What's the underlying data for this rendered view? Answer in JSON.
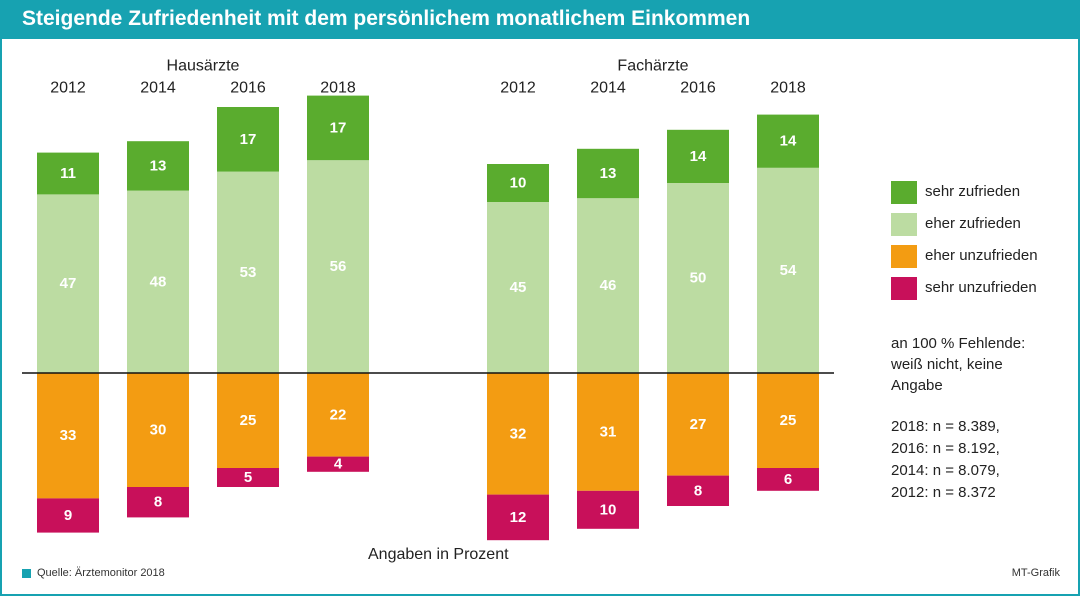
{
  "title": "Steigende Zufriedenheit mit dem persönlichem monatlichem Einkommen",
  "colors": {
    "accent": "#17a2b1",
    "sehr_zufrieden": "#5aac2e",
    "eher_zufrieden": "#bcdca2",
    "eher_unzufrieden": "#f39c12",
    "sehr_unzufrieden": "#c8105a"
  },
  "legend": [
    {
      "label": "sehr zufrieden",
      "color": "#5aac2e"
    },
    {
      "label": "eher zufrieden",
      "color": "#bcdca2"
    },
    {
      "label": "eher unzufrieden",
      "color": "#f39c12"
    },
    {
      "label": "sehr unzufrieden",
      "color": "#c8105a"
    }
  ],
  "notes": {
    "missing": [
      "an 100 % Fehlende:",
      "weiß nicht, keine",
      "Angabe"
    ],
    "samples": [
      "2018: n = 8.389,",
      "2016: n = 8.192,",
      "2014: n = 8.079,",
      "2012: n = 8.372"
    ]
  },
  "unit_note": "Angaben  in Prozent",
  "source": "Quelle: Ärztemonitor 2018",
  "credit": "MT-Grafik",
  "chart_data": {
    "type": "bar",
    "stacked": "diverging",
    "groups": [
      {
        "name": "Hausärzte",
        "categories": [
          "2012",
          "2014",
          "2016",
          "2018"
        ],
        "series": [
          {
            "name": "sehr zufrieden",
            "values": [
              11,
              13,
              17,
              17
            ]
          },
          {
            "name": "eher zufrieden",
            "values": [
              47,
              48,
              53,
              56
            ]
          },
          {
            "name": "eher unzufrieden",
            "values": [
              33,
              30,
              25,
              22
            ]
          },
          {
            "name": "sehr unzufrieden",
            "values": [
              9,
              8,
              5,
              4
            ]
          }
        ]
      },
      {
        "name": "Fachärzte",
        "categories": [
          "2012",
          "2014",
          "2016",
          "2018"
        ],
        "series": [
          {
            "name": "sehr zufrieden",
            "values": [
              10,
              13,
              14,
              14
            ]
          },
          {
            "name": "eher zufrieden",
            "values": [
              45,
              46,
              50,
              54
            ]
          },
          {
            "name": "eher unzufrieden",
            "values": [
              32,
              31,
              27,
              25
            ]
          },
          {
            "name": "sehr unzufrieden",
            "values": [
              12,
              10,
              8,
              6
            ]
          }
        ]
      }
    ]
  }
}
